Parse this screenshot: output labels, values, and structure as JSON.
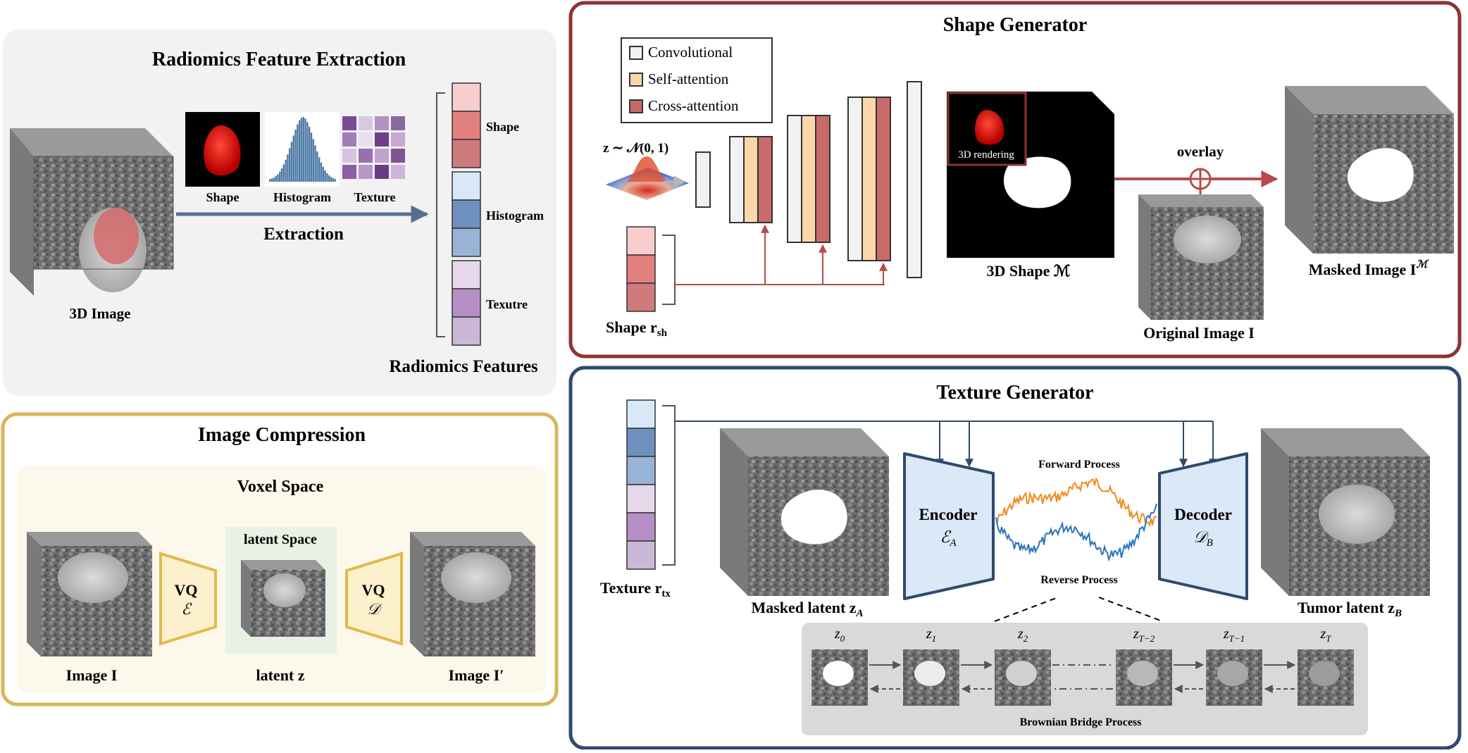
{
  "radiomics": {
    "title": "Radiomics Feature Extraction",
    "image_label": "3D Image",
    "thumb_shape": "Shape",
    "thumb_histogram": "Histogram",
    "thumb_texture": "Texture",
    "extraction": "Extraction",
    "feat_shape": "Shape",
    "feat_histogram": "Histogram",
    "feat_texture": "Texutre",
    "features_label": "Radiomics Features"
  },
  "compression": {
    "title": "Image Compression",
    "voxel_space": "Voxel Space",
    "latent_space": "latent Space",
    "encoder_vq": "VQ",
    "encoder_sym": "ℰ",
    "decoder_vq": "VQ",
    "decoder_sym": "𝒟",
    "image_in": "Image I",
    "latent": "latent z",
    "image_out": "Image I′"
  },
  "shape_gen": {
    "title": "Shape Generator",
    "legend": [
      "Convolutional",
      "Self-attention",
      "Cross-attention"
    ],
    "noise_label": "z ∼ 𝒩(0, 1)",
    "shape_input": "Shape r",
    "shape_input_sub": "sh",
    "rendering_label": "3D rendering",
    "shape_out": "3D Shape ℳ",
    "overlay": "overlay",
    "original": "Original Image I",
    "masked_out": "Masked Image I",
    "masked_out_sup": "ℳ"
  },
  "texture_gen": {
    "title": "Texture Generator",
    "texture_input": "Texture r",
    "texture_input_sub": "tx",
    "masked_latent": "Masked latent z",
    "masked_latent_sub": "A",
    "encoder": "Encoder",
    "encoder_sym": "ℰ",
    "encoder_sub": "A",
    "decoder": "Decoder",
    "decoder_sym": "𝒟",
    "decoder_sub": "B",
    "forward": "Forward Process",
    "reverse": "Reverse Process",
    "tumor_latent": "Tumor latent z",
    "tumor_latent_sub": "B",
    "bb_process": "Brownian Bridge Process",
    "steps": [
      "z",
      "z",
      "z",
      "z",
      "z",
      "z"
    ],
    "step_subs": [
      "0",
      "1",
      "2",
      "T−2",
      "T−1",
      "T"
    ]
  },
  "colors": {
    "radiomics_bg": "#f2f2f2",
    "compression_border": "#d9b65a",
    "shape_border": "#8f3333",
    "texture_border": "#2f4a6e",
    "conv": "#f2f2f2",
    "self_attn": "#fbd7a9",
    "cross_attn": "#c96a6a",
    "forward_noise": "#f08a1e",
    "reverse_noise": "#2b74b8"
  }
}
